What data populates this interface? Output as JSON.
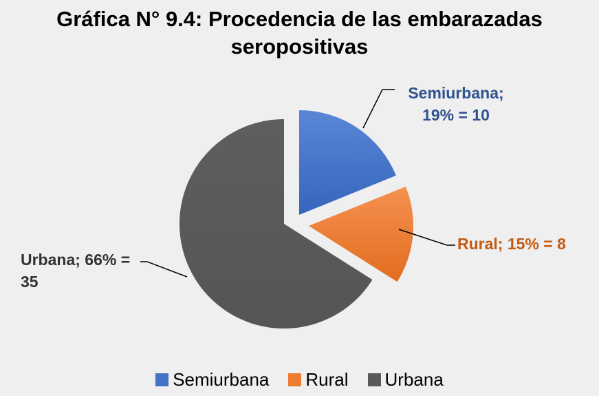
{
  "chart_data": {
    "type": "pie",
    "title": "Gráfica N° 9.4: Procedencia de las embarazadas seropositivas",
    "categories": [
      "Semiurbana",
      "Rural",
      "Urbana"
    ],
    "values": [
      10,
      8,
      35
    ],
    "value_labels": [
      "Semiurbana; 19% = 10",
      "Rural; 15% = 8",
      "Urbana; 66% = 35"
    ],
    "colors": [
      "#4472c4",
      "#ed7d31",
      "#595959"
    ],
    "legend": "bottom"
  }
}
